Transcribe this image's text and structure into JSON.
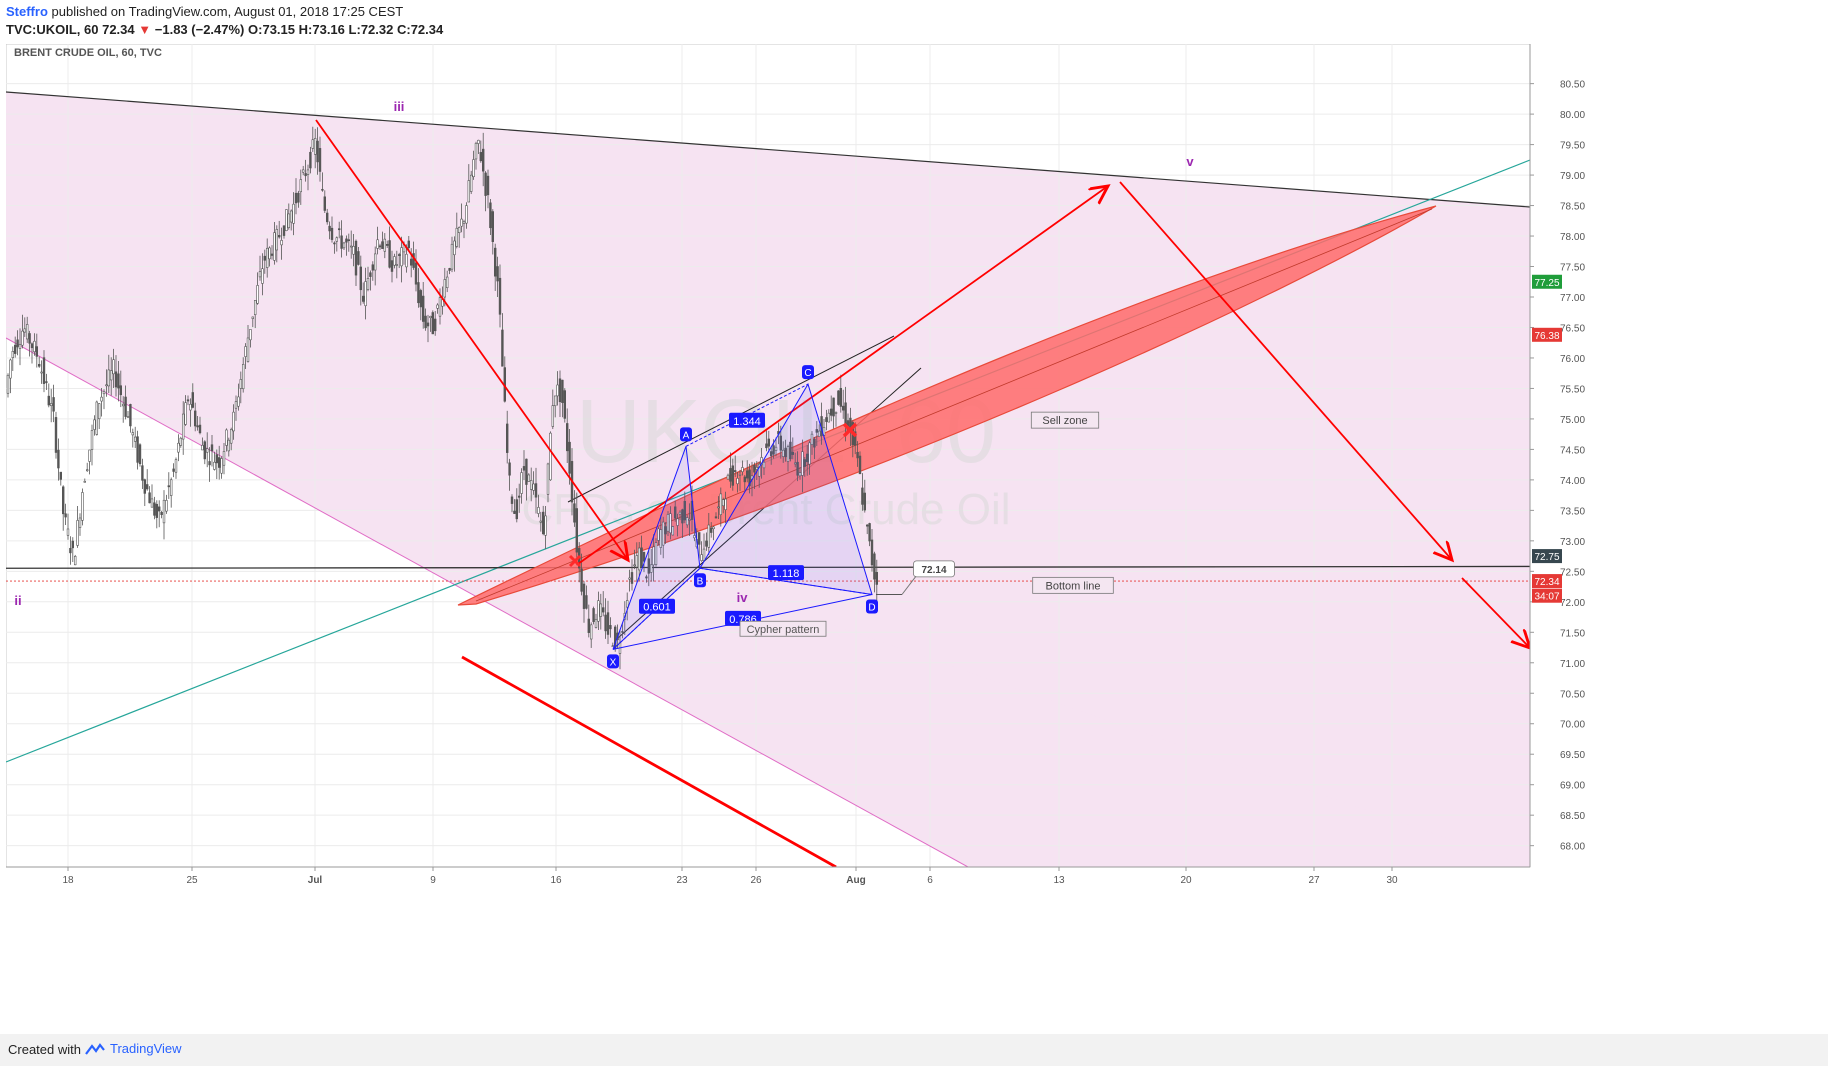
{
  "header": {
    "author": "Steffro",
    "published_text": "published on TradingView.com, August 01, 2018 17:25 CEST",
    "symbol": "TVC:UKOIL, 60",
    "last": "72.34",
    "change": "−1.83 (−2.47%)",
    "ohlc_o_label": "O:",
    "ohlc_o": "73.15",
    "ohlc_h_label": "H:",
    "ohlc_h": "73.16",
    "ohlc_l_label": "L:",
    "ohlc_l": "72.32",
    "ohlc_c_label": "C:",
    "ohlc_c": "72.34"
  },
  "chart_title": "BRENT CRUDE OIL, 60, TVC",
  "watermark": {
    "symbol": "UKOIL, 60",
    "description": "CFDs on Brent Crude Oil"
  },
  "footer": {
    "created_with": "Created with",
    "brand": "TradingView"
  },
  "colors": {
    "up": "#4a4a4a",
    "down": "#4a4a4a",
    "arrow": "#ff0000",
    "pattern": "#1a1aff",
    "zone_pink": "#f6e3f2",
    "ellipse_fill": "#ff6b6b",
    "green_line": "#26a69a",
    "wave": "#9c27b0",
    "price_red": "#e53935",
    "price_green": "#1f9d3a",
    "price_dark": "#37474f"
  },
  "chart_data": {
    "type": "candlestick",
    "title": "BRENT CRUDE OIL, 60, TVC",
    "x_tick_labels": [
      "18",
      "25",
      "Jul",
      "9",
      "16",
      "23",
      "26",
      "Aug",
      "6",
      "13",
      "20",
      "27",
      "30"
    ],
    "y_tick_labels": [
      "68.00",
      "68.50",
      "69.00",
      "69.50",
      "70.00",
      "70.50",
      "71.00",
      "71.50",
      "72.00",
      "72.50",
      "73.00",
      "73.50",
      "74.00",
      "74.50",
      "75.00",
      "75.50",
      "76.00",
      "76.50",
      "77.00",
      "77.50",
      "78.00",
      "78.50",
      "79.00",
      "79.50",
      "80.00",
      "80.50"
    ],
    "ylim": [
      67.65,
      81.15
    ],
    "price_path": [
      [
        0,
        75.2
      ],
      [
        8,
        76.1
      ],
      [
        20,
        76.5
      ],
      [
        35,
        76.0
      ],
      [
        50,
        75.0
      ],
      [
        60,
        73.4
      ],
      [
        70,
        72.7
      ],
      [
        80,
        74.0
      ],
      [
        95,
        75.3
      ],
      [
        110,
        75.8
      ],
      [
        125,
        75.0
      ],
      [
        140,
        74.0
      ],
      [
        155,
        73.3
      ],
      [
        170,
        74.1
      ],
      [
        185,
        75.4
      ],
      [
        200,
        74.5
      ],
      [
        215,
        74.3
      ],
      [
        230,
        75.0
      ],
      [
        245,
        76.4
      ],
      [
        260,
        77.6
      ],
      [
        275,
        78.0
      ],
      [
        290,
        78.5
      ],
      [
        305,
        79.2
      ],
      [
        312,
        79.55
      ],
      [
        320,
        78.5
      ],
      [
        330,
        78.0
      ],
      [
        340,
        77.9
      ],
      [
        350,
        77.7
      ],
      [
        360,
        77.0
      ],
      [
        375,
        78.0
      ],
      [
        390,
        77.5
      ],
      [
        405,
        77.8
      ],
      [
        420,
        76.6
      ],
      [
        430,
        76.5
      ],
      [
        440,
        77.2
      ],
      [
        450,
        77.8
      ],
      [
        460,
        78.3
      ],
      [
        470,
        79.2
      ],
      [
        475,
        79.55
      ],
      [
        485,
        78.5
      ],
      [
        495,
        77.0
      ],
      [
        505,
        74.0
      ],
      [
        512,
        73.4
      ],
      [
        520,
        74.2
      ],
      [
        530,
        73.8
      ],
      [
        540,
        73.1
      ],
      [
        550,
        75.5
      ],
      [
        558,
        75.4
      ],
      [
        566,
        74.2
      ],
      [
        575,
        72.6
      ],
      [
        585,
        71.6
      ],
      [
        595,
        71.9
      ],
      [
        605,
        71.5
      ],
      [
        615,
        71.3
      ],
      [
        625,
        72.3
      ],
      [
        635,
        72.8
      ],
      [
        645,
        72.4
      ],
      [
        655,
        73.1
      ],
      [
        665,
        73.3
      ],
      [
        675,
        73.4
      ],
      [
        685,
        73.5
      ],
      [
        695,
        72.8
      ],
      [
        705,
        73.1
      ],
      [
        715,
        73.5
      ],
      [
        725,
        74.0
      ],
      [
        735,
        74.2
      ],
      [
        745,
        74.0
      ],
      [
        755,
        74.3
      ],
      [
        765,
        74.5
      ],
      [
        775,
        74.6
      ],
      [
        785,
        74.4
      ],
      [
        795,
        74.2
      ],
      [
        805,
        74.5
      ],
      [
        815,
        74.8
      ],
      [
        825,
        75.1
      ],
      [
        835,
        75.3
      ],
      [
        845,
        74.9
      ],
      [
        855,
        74.2
      ],
      [
        862,
        73.3
      ],
      [
        870,
        72.5
      ],
      [
        873,
        72.34
      ]
    ],
    "series_last_value": 72.34,
    "price_tags": [
      {
        "label": "77.25",
        "y": 77.25,
        "role": "green"
      },
      {
        "label": "76.38",
        "y": 76.38,
        "role": "red"
      },
      {
        "label": "72.75",
        "y": 72.75,
        "role": "dark"
      },
      {
        "label": "72.34",
        "y": 72.34,
        "role": "red"
      },
      {
        "label": "34:07",
        "y": 72.1,
        "role": "red"
      }
    ],
    "cypher_pattern": {
      "label": "Cypher pattern",
      "points": [
        {
          "name": "X",
          "x": 607,
          "y": 71.22
        },
        {
          "name": "A",
          "x": 680,
          "y": 74.55
        },
        {
          "name": "B",
          "x": 694,
          "y": 72.55
        },
        {
          "name": "C",
          "x": 802,
          "y": 75.57
        },
        {
          "name": "D",
          "x": 866,
          "y": 72.12
        }
      ],
      "ratios": [
        {
          "label": "0.601",
          "x": 651,
          "y": 71.92
        },
        {
          "label": "1.344",
          "x": 741,
          "y": 74.97
        },
        {
          "label": "1.118",
          "x": 780,
          "y": 72.47
        },
        {
          "label": "0.786",
          "x": 737,
          "y": 71.72
        }
      ]
    },
    "annotations": {
      "waves": [
        {
          "label": "iii",
          "x": 393,
          "y": 80.05
        },
        {
          "label": "ii",
          "x": 12,
          "y": 71.95
        },
        {
          "label": "iv",
          "x": 736,
          "y": 72.0
        },
        {
          "label": "v",
          "x": 1184,
          "y": 79.15
        }
      ],
      "boxes": [
        {
          "label": "Sell zone",
          "x": 1059,
          "y": 74.98
        },
        {
          "label": "Bottom line",
          "x": 1067,
          "y": 72.27
        },
        {
          "label": "72.14",
          "x": 928,
          "y": 72.54
        }
      ]
    }
  }
}
